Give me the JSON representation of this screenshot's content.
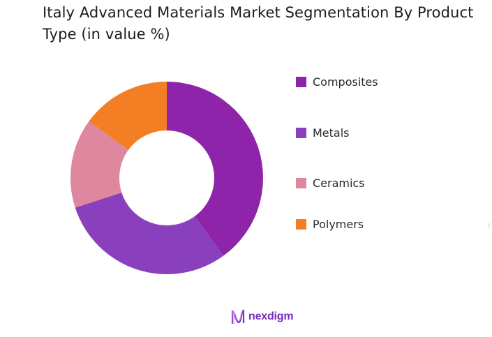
{
  "title": "Italy Advanced Materials Market Segmentation By Product Type (in value %)",
  "chart_data": {
    "type": "pie",
    "variant": "donut",
    "title": "Italy Advanced Materials Market Segmentation By Product Type (in value %)",
    "categories": [
      "Composites",
      "Metals",
      "Ceramics",
      "Polymers"
    ],
    "values": [
      40,
      30,
      15,
      15
    ],
    "colors": [
      "#8E24AA",
      "#8A3FBC",
      "#DE879E",
      "#F47E24"
    ],
    "unit": "%",
    "start_angle": "12 o'clock",
    "direction": "clockwise",
    "legend_position": "right"
  },
  "legend": [
    {
      "label": "Composites",
      "color": "#8E24AA"
    },
    {
      "label": "Metals",
      "color": "#8A3FBC"
    },
    {
      "label": "Ceramics",
      "color": "#DE879E"
    },
    {
      "label": "Polymers",
      "color": "#F47E24"
    }
  ],
  "brand": {
    "name": "nexdigm",
    "color": "#7a2bb8"
  }
}
